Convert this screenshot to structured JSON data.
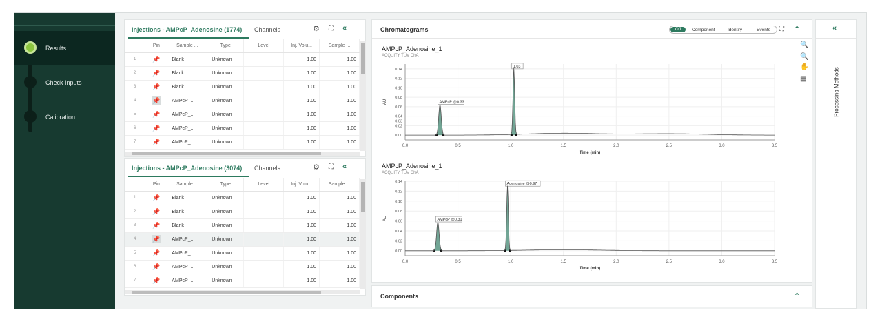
{
  "nav": {
    "items": [
      {
        "label": "Results",
        "active": true
      },
      {
        "label": "Check Inputs",
        "active": false
      },
      {
        "label": "Calibration",
        "active": false
      }
    ]
  },
  "injections": [
    {
      "title": "Injections - AMPcP_Adenosine (1774)",
      "channels_tab": "Channels",
      "columns": [
        "Pin",
        "Sample ...",
        "Type",
        "Level",
        "Inj. Volu...",
        "Sample ..."
      ],
      "rows": [
        {
          "num": "1",
          "sample": "Blank",
          "type": "Unknown",
          "level": "",
          "inj": "1.00",
          "sample2": "1.00"
        },
        {
          "num": "2",
          "sample": "Blank",
          "type": "Unknown",
          "level": "",
          "inj": "1.00",
          "sample2": "1.00"
        },
        {
          "num": "3",
          "sample": "Blank",
          "type": "Unknown",
          "level": "",
          "inj": "1.00",
          "sample2": "1.00"
        },
        {
          "num": "4",
          "sample": "AMPcP_...",
          "type": "Unknown",
          "level": "",
          "inj": "1.00",
          "sample2": "1.00"
        },
        {
          "num": "5",
          "sample": "AMPcP_...",
          "type": "Unknown",
          "level": "",
          "inj": "1.00",
          "sample2": "1.00"
        },
        {
          "num": "6",
          "sample": "AMPcP_...",
          "type": "Unknown",
          "level": "",
          "inj": "1.00",
          "sample2": "1.00"
        },
        {
          "num": "7",
          "sample": "AMPcP_...",
          "type": "Unknown",
          "level": "",
          "inj": "1.00",
          "sample2": "1.00"
        }
      ]
    },
    {
      "title": "Injections - AMPcP_Adenosine (3074)",
      "channels_tab": "Channels",
      "columns": [
        "Pin",
        "Sample ...",
        "Type",
        "Level",
        "Inj. Volu...",
        "Sample ..."
      ],
      "rows": [
        {
          "num": "1",
          "sample": "Blank",
          "type": "Unknown",
          "level": "",
          "inj": "1.00",
          "sample2": "1.00"
        },
        {
          "num": "2",
          "sample": "Blank",
          "type": "Unknown",
          "level": "",
          "inj": "1.00",
          "sample2": "1.00"
        },
        {
          "num": "3",
          "sample": "Blank",
          "type": "Unknown",
          "level": "",
          "inj": "1.00",
          "sample2": "1.00"
        },
        {
          "num": "4",
          "sample": "AMPcP_...",
          "type": "Unknown",
          "level": "",
          "inj": "1.00",
          "sample2": "1.00"
        },
        {
          "num": "5",
          "sample": "AMPcP_...",
          "type": "Unknown",
          "level": "",
          "inj": "1.00",
          "sample2": "1.00"
        },
        {
          "num": "6",
          "sample": "AMPcP_...",
          "type": "Unknown",
          "level": "",
          "inj": "1.00",
          "sample2": "1.00"
        },
        {
          "num": "7",
          "sample": "AMPcP_...",
          "type": "Unknown",
          "level": "",
          "inj": "1.00",
          "sample2": "1.00"
        }
      ]
    }
  ],
  "chromatograms": {
    "title": "Chromatograms",
    "toggle": {
      "off": "Off",
      "component": "Component",
      "identify": "Identify",
      "events": "Events"
    }
  },
  "components": {
    "title": "Components"
  },
  "processing": {
    "label": "Processing Methods"
  },
  "icons": {
    "gear": "gear-icon",
    "expand": "expand-icon",
    "collapse": "double-chevron-left-icon",
    "zoom_in": "zoom-in-icon",
    "zoom_out": "zoom-out-icon",
    "pan": "hand-icon",
    "stack": "layers-icon"
  },
  "colors": {
    "accent": "#2d7a5f",
    "nav_bg": "#173a30",
    "peak_fill": "#4f8f7a"
  },
  "chart_data": [
    {
      "type": "line",
      "title": "AMPcP_Adenosine_1",
      "subtitle": "ACQUITY TUV ChA",
      "xlabel": "Time (min)",
      "ylabel": "AU",
      "xlim": [
        0.0,
        3.5
      ],
      "ylim": [
        -0.01,
        0.15
      ],
      "xticks": [
        0.0,
        0.5,
        1.0,
        1.5,
        2.0,
        2.5,
        3.0,
        3.5
      ],
      "yticks": [
        0.0,
        0.02,
        0.03,
        0.04,
        0.06,
        0.08,
        0.1,
        0.12,
        0.14
      ],
      "ytick_labels": [
        "0.00",
        "0.02",
        "0.03",
        "0.04",
        "0.06",
        "0.08",
        "0.10",
        "0.12",
        "0.14"
      ],
      "peaks": [
        {
          "label": "AMPcP @0.33",
          "rt": 0.33,
          "height": 0.065,
          "width": 0.03
        },
        {
          "label": "1.03",
          "rt": 1.03,
          "height": 0.14,
          "width": 0.02
        }
      ],
      "baseline_bumps": [
        {
          "x": 1.5,
          "h": 0.004
        },
        {
          "x": 2.5,
          "h": 0.003
        }
      ]
    },
    {
      "type": "line",
      "title": "AMPcP_Adenosine_1",
      "subtitle": "ACQUITY TUV ChA",
      "xlabel": "Time (min)",
      "ylabel": "AU",
      "xlim": [
        0.0,
        3.5
      ],
      "ylim": [
        -0.01,
        0.14
      ],
      "xticks": [
        0.0,
        0.5,
        1.0,
        1.5,
        2.0,
        2.5,
        3.0,
        3.5
      ],
      "yticks": [
        0.0,
        0.02,
        0.04,
        0.06,
        0.08,
        0.1,
        0.12,
        0.14
      ],
      "ytick_labels": [
        "0.00",
        "0.02",
        "0.04",
        "0.06",
        "0.08",
        "0.10",
        "0.12",
        "0.14"
      ],
      "peaks": [
        {
          "label": "AMPcP @0.31",
          "rt": 0.31,
          "height": 0.058,
          "width": 0.03
        },
        {
          "label": "Adenosine @0.97",
          "rt": 0.97,
          "height": 0.13,
          "width": 0.02
        }
      ],
      "baseline_bumps": [
        {
          "x": 1.5,
          "h": 0.002
        }
      ]
    }
  ]
}
